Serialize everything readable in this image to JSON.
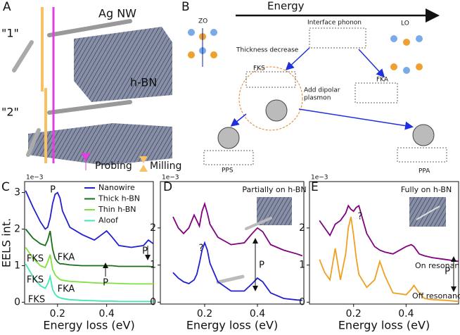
{
  "diagrams": {
    "A": {
      "label": "A",
      "nanowire": "Ag NW",
      "state1": "\"1\"",
      "state2": "\"2\"",
      "material": "h-BN",
      "probing": "Probing",
      "milling": "Milling"
    },
    "B": {
      "label": "B",
      "energy": "Energy",
      "zo": "ZO",
      "interface": "Interface phonon",
      "lo": "LO",
      "thickness": "Thickness decrease",
      "fks": "FKS",
      "fka": "FKA",
      "plasmon": [
        "Add dipolar",
        "plasmon"
      ],
      "pps": "PPS",
      "ppa": "PPA"
    }
  },
  "chart_data": [
    {
      "type": "line",
      "panel": "C",
      "scale_note": "1e−3",
      "xlabel": "Energy loss (eV)",
      "ylabel": "EELS int.",
      "xlim": [
        0.066,
        0.59
      ],
      "xticks": [
        0.2,
        0.4
      ],
      "ylim": [
        -0.05,
        3.3
      ],
      "yticks": [
        0,
        1,
        2,
        3
      ],
      "x": [
        0.07,
        0.1,
        0.13,
        0.15,
        0.16,
        0.17,
        0.18,
        0.19,
        0.2,
        0.21,
        0.22,
        0.25,
        0.3,
        0.35,
        0.38,
        0.4,
        0.42,
        0.45,
        0.5,
        0.55,
        0.57,
        0.59
      ],
      "series": [
        {
          "name": "Nanowire",
          "color": "#2020d0",
          "values": [
            3.05,
            2.6,
            2.2,
            2.0,
            2.05,
            2.3,
            2.7,
            2.95,
            3.0,
            2.85,
            2.5,
            2.05,
            1.85,
            1.7,
            1.85,
            1.95,
            1.8,
            1.55,
            1.5,
            1.55,
            1.7,
            1.6
          ]
        },
        {
          "name": "Thick h-BN",
          "color": "#1a6e1a",
          "values": [
            2.0,
            1.75,
            1.6,
            1.55,
            1.7,
            1.95,
            1.45,
            1.2,
            1.1,
            1.05,
            1.05,
            1.02,
            1.0,
            1.0,
            1.0,
            1.0,
            1.0,
            0.98,
            0.98,
            0.98,
            0.98,
            0.97
          ]
        },
        {
          "name": "Thin h-BN",
          "color": "#80e040",
          "values": [
            1.5,
            1.2,
            1.0,
            0.95,
            1.1,
            1.3,
            0.9,
            0.75,
            0.68,
            0.62,
            0.6,
            0.57,
            0.55,
            0.53,
            0.52,
            0.52,
            0.52,
            0.51,
            0.5,
            0.5,
            0.5,
            0.5
          ]
        },
        {
          "name": "Aloof",
          "color": "#40e8b0",
          "values": [
            1.05,
            0.7,
            0.45,
            0.38,
            0.5,
            0.7,
            0.35,
            0.22,
            0.15,
            0.12,
            0.1,
            0.07,
            0.05,
            0.04,
            0.03,
            0.03,
            0.03,
            0.02,
            0.02,
            0.02,
            0.02,
            0.02
          ]
        }
      ],
      "annotations": [
        "P",
        "P",
        "P",
        "FKS",
        "FKA",
        "FKS",
        "FKA",
        "FKS"
      ]
    },
    {
      "type": "line",
      "panel": "D",
      "scale_note": "1e−3",
      "xlabel": "Energy loss (eV)",
      "xlim": [
        0.032,
        0.576
      ],
      "xticks": [
        0.2,
        0.4
      ],
      "ylim": [
        -0.05,
        3.25
      ],
      "yticks": [
        0,
        1,
        2
      ],
      "x": [
        0.08,
        0.1,
        0.12,
        0.14,
        0.16,
        0.17,
        0.18,
        0.19,
        0.2,
        0.21,
        0.22,
        0.25,
        0.3,
        0.35,
        0.38,
        0.4,
        0.42,
        0.45,
        0.5,
        0.55,
        0.57
      ],
      "series": [
        {
          "color": "#800080",
          "values": [
            2.3,
            2.0,
            1.85,
            2.0,
            2.35,
            2.2,
            2.05,
            2.45,
            2.65,
            2.4,
            2.1,
            1.75,
            1.55,
            1.6,
            1.85,
            2.0,
            1.9,
            1.55,
            1.4,
            1.3,
            1.25
          ]
        },
        {
          "color": "#2020d0",
          "values": [
            0.8,
            0.65,
            0.55,
            0.5,
            0.6,
            0.75,
            1.05,
            1.4,
            1.6,
            1.4,
            1.05,
            0.55,
            0.3,
            0.3,
            0.5,
            0.65,
            0.55,
            0.25,
            0.1,
            0.06,
            0.05
          ]
        }
      ],
      "annotations": [
        "Partially on h-BN",
        "?",
        "P"
      ]
    },
    {
      "type": "line",
      "panel": "E",
      "scale_note": "1e−3",
      "xlabel": "Energy loss (eV)",
      "xlim": [
        0.032,
        0.6
      ],
      "xticks": [
        0.2,
        0.4
      ],
      "ylim": [
        -0.05,
        3.25
      ],
      "yticks": [
        0,
        1,
        2
      ],
      "x": [
        0.07,
        0.09,
        0.11,
        0.13,
        0.15,
        0.17,
        0.18,
        0.19,
        0.2,
        0.21,
        0.22,
        0.25,
        0.28,
        0.3,
        0.32,
        0.35,
        0.4,
        0.42,
        0.43,
        0.45,
        0.47,
        0.5,
        0.55,
        0.6
      ],
      "series": [
        {
          "name": "On resonance",
          "color": "#800080",
          "values": [
            2.2,
            2.0,
            1.8,
            2.1,
            2.2,
            2.4,
            2.6,
            2.5,
            2.45,
            2.55,
            2.6,
            1.85,
            1.5,
            1.4,
            1.35,
            1.3,
            1.5,
            1.55,
            1.5,
            1.3,
            1.25,
            1.2,
            1.15,
            1.1
          ]
        },
        {
          "name": "Off resonance",
          "color": "#f0a020",
          "values": [
            1.15,
            0.8,
            0.6,
            1.45,
            0.6,
            1.3,
            2.0,
            2.3,
            1.8,
            1.2,
            0.75,
            0.4,
            0.6,
            1.1,
            0.7,
            0.25,
            0.2,
            0.35,
            0.45,
            0.25,
            0.1,
            0.07,
            0.05,
            0.02
          ]
        }
      ],
      "annotations": [
        "Fully on h-BN",
        "?",
        "P"
      ]
    }
  ]
}
